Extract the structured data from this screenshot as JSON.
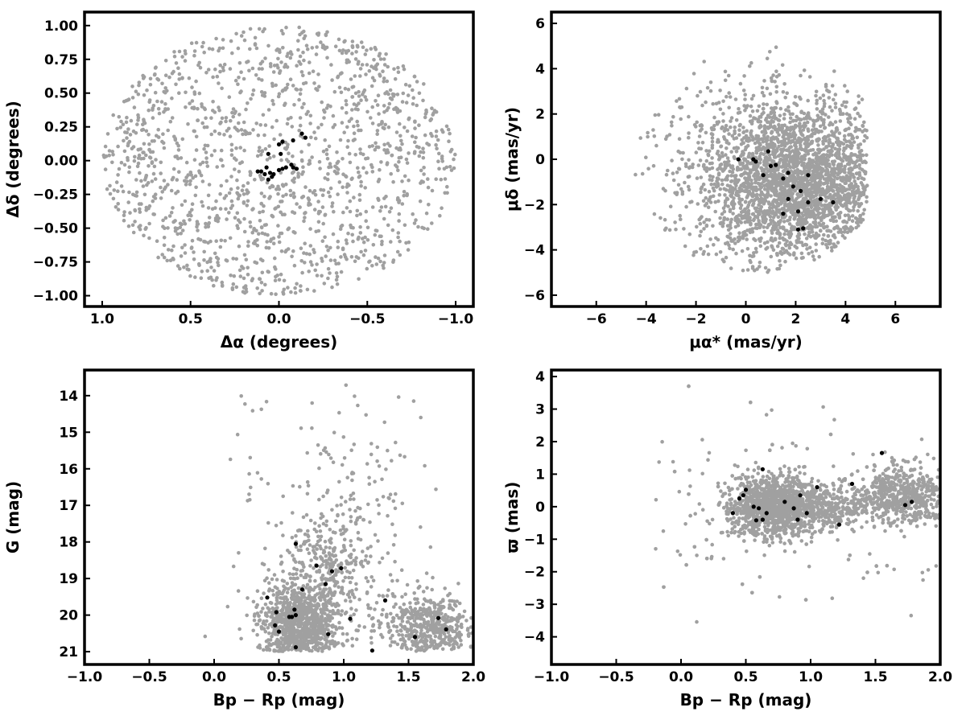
{
  "colors": {
    "field": "#a0a0a0",
    "members": "#000000",
    "background": "#ffffff"
  },
  "chart_data": [
    {
      "id": "spatial",
      "type": "scatter",
      "title": "",
      "xlabel": "Δα (degrees)",
      "ylabel": "Δδ (degrees)",
      "xlim": [
        1.1,
        -1.1
      ],
      "ylim": [
        -1.08,
        1.1
      ],
      "x_inverted": true,
      "xticks": [
        1.0,
        0.5,
        0.0,
        -0.5,
        -1.0
      ],
      "xtick_labels": [
        "1.0",
        "0.5",
        "0.0",
        "−0.5",
        "−1.0"
      ],
      "yticks": [
        1.0,
        0.75,
        0.5,
        0.25,
        0.0,
        -0.25,
        -0.5,
        -0.75,
        -1.0
      ],
      "ytick_labels": [
        "1.00",
        "0.75",
        "0.50",
        "0.25",
        "0.00",
        "−0.25",
        "−0.50",
        "−0.75",
        "−1.00"
      ],
      "grid": false,
      "series": [
        {
          "role": "field",
          "color": "#a0a0a0",
          "generated": {
            "kind": "disk",
            "n": 1500,
            "cx": 0,
            "cy": 0,
            "rx": 1.0,
            "ry": 1.0
          }
        },
        {
          "role": "members",
          "color": "#000000",
          "points": [
            [
              0.1,
              -0.08
            ],
            [
              0.08,
              -0.1
            ],
            [
              0.05,
              -0.09
            ],
            [
              0.03,
              -0.1
            ],
            [
              0.0,
              -0.07
            ],
            [
              -0.02,
              -0.06
            ],
            [
              -0.04,
              -0.05
            ],
            [
              -0.07,
              -0.03
            ],
            [
              0.07,
              -0.05
            ],
            [
              0.12,
              -0.08
            ],
            [
              0.06,
              -0.14
            ],
            [
              0.04,
              -0.12
            ],
            [
              0.0,
              0.12
            ],
            [
              -0.02,
              0.14
            ],
            [
              -0.01,
              0.05
            ],
            [
              0.06,
              0.05
            ],
            [
              -0.08,
              0.15
            ],
            [
              -0.13,
              0.2
            ],
            [
              -0.15,
              0.17
            ],
            [
              -0.08,
              -0.05
            ],
            [
              -0.1,
              -0.06
            ]
          ]
        }
      ]
    },
    {
      "id": "proper-motion",
      "type": "scatter",
      "title": "",
      "xlabel": "μα* (mas/yr)",
      "ylabel": "μδ (mas/yr)",
      "xlim": [
        -7.8,
        7.8
      ],
      "ylim": [
        -6.5,
        6.5
      ],
      "xticks": [
        -6,
        -4,
        -2,
        0,
        2,
        4,
        6
      ],
      "xtick_labels": [
        "−6",
        "−4",
        "−2",
        "0",
        "2",
        "4",
        "6"
      ],
      "yticks": [
        -6,
        -4,
        -2,
        0,
        2,
        4,
        6
      ],
      "ytick_labels": [
        "−6",
        "−4",
        "−2",
        "0",
        "2",
        "4",
        "6"
      ],
      "grid": false,
      "series": [
        {
          "role": "field",
          "color": "#a0a0a0",
          "generated": {
            "kind": "blob",
            "n": 2600,
            "cx": 2.0,
            "cy": -1.0,
            "sx": 1.9,
            "sy": 1.8,
            "xmax": 4.9,
            "rmax": 5.0,
            "sparse": {
              "n": 160,
              "x": [
                -5.5,
                1.5
              ],
              "y": [
                -4.5,
                4.8
              ]
            }
          }
        },
        {
          "role": "members",
          "color": "#000000",
          "points": [
            [
              -0.3,
              0.0
            ],
            [
              0.3,
              0.0
            ],
            [
              0.9,
              0.35
            ],
            [
              1.0,
              -0.3
            ],
            [
              1.2,
              -0.25
            ],
            [
              0.7,
              -0.7
            ],
            [
              1.5,
              -0.85
            ],
            [
              1.7,
              -0.6
            ],
            [
              1.7,
              -1.75
            ],
            [
              1.9,
              -1.2
            ],
            [
              2.2,
              -1.4
            ],
            [
              1.5,
              -2.4
            ],
            [
              2.1,
              -2.3
            ],
            [
              2.5,
              -1.9
            ],
            [
              3.0,
              -1.75
            ],
            [
              3.5,
              -1.9
            ],
            [
              2.5,
              -0.7
            ],
            [
              2.3,
              -3.05
            ],
            [
              2.1,
              -3.1
            ],
            [
              0.4,
              -0.1
            ]
          ]
        }
      ]
    },
    {
      "id": "cmd",
      "type": "scatter",
      "title": "",
      "xlabel": "Bp − Rp (mag)",
      "ylabel": "G (mag)",
      "xlim": [
        -1.0,
        2.0
      ],
      "ylim": [
        21.35,
        13.3
      ],
      "y_inverted": true,
      "xticks": [
        -1.0,
        -0.5,
        0.0,
        0.5,
        1.0,
        1.5,
        2.0
      ],
      "xtick_labels": [
        "−1.0",
        "−0.5",
        "0.0",
        "0.5",
        "1.0",
        "1.5",
        "2.0"
      ],
      "yticks": [
        21,
        20,
        19,
        18,
        17,
        16,
        15,
        14
      ],
      "ytick_labels": [
        "21",
        "20",
        "19",
        "18",
        "17",
        "16",
        "15",
        "14"
      ],
      "grid": false,
      "series": [
        {
          "role": "field",
          "color": "#a0a0a0",
          "generated": {
            "kind": "cmd",
            "n": 1900,
            "cut": 21.0
          }
        },
        {
          "role": "members",
          "color": "#000000",
          "points": [
            [
              0.63,
              20.88
            ],
            [
              0.47,
              20.28
            ],
            [
              0.5,
              20.45
            ],
            [
              0.58,
              20.05
            ],
            [
              0.6,
              20.05
            ],
            [
              0.63,
              20.0
            ],
            [
              0.48,
              19.92
            ],
            [
              0.62,
              19.85
            ],
            [
              0.41,
              19.52
            ],
            [
              0.68,
              19.3
            ],
            [
              0.86,
              19.15
            ],
            [
              0.79,
              18.65
            ],
            [
              0.91,
              18.8
            ],
            [
              0.98,
              18.72
            ],
            [
              0.63,
              18.05
            ],
            [
              0.88,
              20.52
            ],
            [
              1.05,
              20.1
            ],
            [
              1.22,
              20.97
            ],
            [
              1.32,
              19.6
            ],
            [
              1.55,
              20.6
            ],
            [
              1.73,
              20.08
            ],
            [
              1.79,
              20.39
            ]
          ]
        }
      ]
    },
    {
      "id": "parallax",
      "type": "scatter",
      "title": "",
      "xlabel": "Bp − Rp (mag)",
      "ylabel": "ϖ (mas)",
      "xlim": [
        -1.0,
        2.0
      ],
      "ylim": [
        -4.85,
        4.2
      ],
      "xticks": [
        -1.0,
        -0.5,
        0.0,
        0.5,
        1.0,
        1.5,
        2.0
      ],
      "xtick_labels": [
        "−1.0",
        "−0.5",
        "0.0",
        "0.5",
        "1.0",
        "1.5",
        "2.0"
      ],
      "yticks": [
        4,
        3,
        2,
        1,
        0,
        -1,
        -2,
        -3,
        -4
      ],
      "ytick_labels": [
        "4",
        "3",
        "2",
        "1",
        "0",
        "−1",
        "−2",
        "−3",
        "−4"
      ],
      "grid": false,
      "series": [
        {
          "role": "field",
          "color": "#a0a0a0",
          "generated": {
            "kind": "plx",
            "n": 2600
          }
        },
        {
          "role": "members",
          "color": "#000000",
          "points": [
            [
              0.45,
              0.25
            ],
            [
              0.48,
              0.35
            ],
            [
              0.5,
              0.52
            ],
            [
              0.4,
              -0.2
            ],
            [
              0.56,
              0.0
            ],
            [
              0.6,
              -0.05
            ],
            [
              0.63,
              1.15
            ],
            [
              0.66,
              -0.2
            ],
            [
              0.58,
              -0.42
            ],
            [
              0.63,
              -0.4
            ],
            [
              0.8,
              0.15
            ],
            [
              0.87,
              -0.05
            ],
            [
              0.9,
              -0.4
            ],
            [
              0.92,
              0.35
            ],
            [
              0.97,
              -0.2
            ],
            [
              1.05,
              0.6
            ],
            [
              1.22,
              -0.55
            ],
            [
              1.32,
              0.7
            ],
            [
              1.55,
              1.65
            ],
            [
              1.73,
              0.05
            ],
            [
              1.78,
              0.15
            ]
          ]
        }
      ]
    }
  ]
}
